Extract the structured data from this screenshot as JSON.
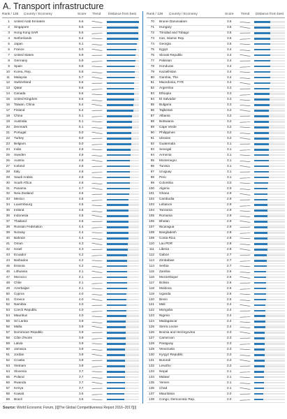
{
  "title": "A. Transport infrastructure",
  "headers": {
    "rank": "Rank / 138",
    "country": "Country / Economy",
    "score": "Score",
    "trend": "Trend",
    "distance": "Distance from best"
  },
  "source": {
    "label": "Source:",
    "text": "World Economic Forum, [i][The Global Competitiveness Report 2016–2017][i]"
  },
  "chart_data": {
    "type": "bar",
    "title": "A. Transport infrastructure",
    "xlabel": "",
    "ylabel": "",
    "xlim": [
      0,
      6.6
    ],
    "grid": false,
    "legend": "none",
    "columns": [
      "Rank / 138",
      "Country / Economy",
      "Score",
      "Trend",
      "Distance from best"
    ],
    "rows": [
      {
        "rank": "1",
        "country": "United Arab Emirates",
        "score": "6.6"
      },
      {
        "rank": "2",
        "country": "Singapore",
        "score": "6.5"
      },
      {
        "rank": "3",
        "country": "Hong Kong SAR",
        "score": "6.5"
      },
      {
        "rank": "4",
        "country": "Netherlands",
        "score": "6.4"
      },
      {
        "rank": "5",
        "country": "Japan",
        "score": "6.1"
      },
      {
        "rank": "6",
        "country": "France",
        "score": "6.0"
      },
      {
        "rank": "7",
        "country": "United States",
        "score": "5.9"
      },
      {
        "rank": "8",
        "country": "Germany",
        "score": "5.9"
      },
      {
        "rank": "9",
        "country": "Spain",
        "score": "5.8"
      },
      {
        "rank": "10",
        "country": "Korea, Rep.",
        "score": "5.8"
      },
      {
        "rank": "11",
        "country": "Malaysia",
        "score": "5.7"
      },
      {
        "rank": "12",
        "country": "Switzerland",
        "score": "5.6"
      },
      {
        "rank": "13",
        "country": "Qatar",
        "score": "5.6"
      },
      {
        "rank": "14",
        "country": "Canada",
        "score": "5.6"
      },
      {
        "rank": "15",
        "country": "United Kingdom",
        "score": "5.6"
      },
      {
        "rank": "16",
        "country": "Taiwan, China",
        "score": "5.4"
      },
      {
        "rank": "17",
        "country": "Finland",
        "score": "5.4"
      },
      {
        "rank": "18",
        "country": "China",
        "score": "5.1"
      },
      {
        "rank": "19",
        "country": "Australia",
        "score": "5.1"
      },
      {
        "rank": "20",
        "country": "Denmark",
        "score": "5.1"
      },
      {
        "rank": "21",
        "country": "Portugal",
        "score": "5.0"
      },
      {
        "rank": "22",
        "country": "Turkey",
        "score": "5.0"
      },
      {
        "rank": "23",
        "country": "Belgium",
        "score": "5.0"
      },
      {
        "rank": "24",
        "country": "India",
        "score": "4.9"
      },
      {
        "rank": "25",
        "country": "Sweden",
        "score": "4.9"
      },
      {
        "rank": "26",
        "country": "Austria",
        "score": "4.8"
      },
      {
        "rank": "27",
        "country": "Iceland",
        "score": "4.8"
      },
      {
        "rank": "28",
        "country": "Italy",
        "score": "4.8"
      },
      {
        "rank": "29",
        "country": "Saudi Arabia",
        "score": "4.8"
      },
      {
        "rank": "30",
        "country": "South Africa",
        "score": "4.8"
      },
      {
        "rank": "31",
        "country": "Panama",
        "score": "4.7"
      },
      {
        "rank": "32",
        "country": "New Zealand",
        "score": "4.6"
      },
      {
        "rank": "33",
        "country": "Mexico",
        "score": "4.5"
      },
      {
        "rank": "34",
        "country": "Luxembourg",
        "score": "4.5"
      },
      {
        "rank": "35",
        "country": "Ireland",
        "score": "4.5"
      },
      {
        "rank": "36",
        "country": "Indonesia",
        "score": "4.5"
      },
      {
        "rank": "37",
        "country": "Thailand",
        "score": "4.5"
      },
      {
        "rank": "38",
        "country": "Russian Federation",
        "score": "4.4"
      },
      {
        "rank": "39",
        "country": "Norway",
        "score": "4.4"
      },
      {
        "rank": "40",
        "country": "Bahrain",
        "score": "4.4"
      },
      {
        "rank": "41",
        "country": "Oman",
        "score": "4.3"
      },
      {
        "rank": "42",
        "country": "Israel",
        "score": "4.3"
      },
      {
        "rank": "43",
        "country": "Ecuador",
        "score": "4.2"
      },
      {
        "rank": "44",
        "country": "Barbados",
        "score": "4.2"
      },
      {
        "rank": "45",
        "country": "Estonia",
        "score": "4.2"
      },
      {
        "rank": "46",
        "country": "Lithuania",
        "score": "4.1"
      },
      {
        "rank": "47",
        "country": "Morocco",
        "score": "4.1"
      },
      {
        "rank": "48",
        "country": "Chile",
        "score": "4.1"
      },
      {
        "rank": "49",
        "country": "Azerbaijan",
        "score": "4.1"
      },
      {
        "rank": "50",
        "country": "Cyprus",
        "score": "4.0"
      },
      {
        "rank": "51",
        "country": "Greece",
        "score": "4.0"
      },
      {
        "rank": "52",
        "country": "Namibia",
        "score": "4.0"
      },
      {
        "rank": "53",
        "country": "Czech Republic",
        "score": "4.0"
      },
      {
        "rank": "54",
        "country": "Mauritius",
        "score": "4.0"
      },
      {
        "rank": "55",
        "country": "Sri Lanka",
        "score": "3.9"
      },
      {
        "rank": "56",
        "country": "Malta",
        "score": "3.9"
      },
      {
        "rank": "57",
        "country": "Dominican Republic",
        "score": "3.9"
      },
      {
        "rank": "58",
        "country": "Côte d'Ivoire",
        "score": "3.9"
      },
      {
        "rank": "59",
        "country": "Latvia",
        "score": "3.9"
      },
      {
        "rank": "60",
        "country": "Jamaica",
        "score": "3.8"
      },
      {
        "rank": "61",
        "country": "Jordan",
        "score": "3.8"
      },
      {
        "rank": "62",
        "country": "Croatia",
        "score": "3.8"
      },
      {
        "rank": "63",
        "country": "Vietnam",
        "score": "3.8"
      },
      {
        "rank": "64",
        "country": "Slovenia",
        "score": "3.7"
      },
      {
        "rank": "65",
        "country": "Poland",
        "score": "3.7"
      },
      {
        "rank": "66",
        "country": "Rwanda",
        "score": "3.7"
      },
      {
        "rank": "67",
        "country": "Kenya",
        "score": "3.7"
      },
      {
        "rank": "68",
        "country": "Kuwait",
        "score": "3.6"
      },
      {
        "rank": "69",
        "country": "Brazil",
        "score": "3.6"
      },
      {
        "rank": "70",
        "country": "Brunei Darussalam",
        "score": "3.5"
      },
      {
        "rank": "71",
        "country": "Hungary",
        "score": "3.5"
      },
      {
        "rank": "72",
        "country": "Trinidad and Tobago",
        "score": "3.5"
      },
      {
        "rank": "73",
        "country": "Iran, Islamic Rep.",
        "score": "3.5"
      },
      {
        "rank": "74",
        "country": "Georgia",
        "score": "3.5"
      },
      {
        "rank": "75",
        "country": "Egypt",
        "score": "3.4"
      },
      {
        "rank": "76",
        "country": "Slovak Republic",
        "score": "3.4"
      },
      {
        "rank": "77",
        "country": "Pakistan",
        "score": "3.4"
      },
      {
        "rank": "78",
        "country": "Honduras",
        "score": "3.4"
      },
      {
        "rank": "79",
        "country": "Kazakhstan",
        "score": "3.4"
      },
      {
        "rank": "80",
        "country": "Gambia, The",
        "score": "3.4"
      },
      {
        "rank": "81",
        "country": "Macedonia, FYR",
        "score": "3.4"
      },
      {
        "rank": "82",
        "country": "Argentina",
        "score": "3.3"
      },
      {
        "rank": "83",
        "country": "Ethiopia",
        "score": "3.3"
      },
      {
        "rank": "84",
        "country": "El Salvador",
        "score": "3.3"
      },
      {
        "rank": "85",
        "country": "Bulgaria",
        "score": "3.3"
      },
      {
        "rank": "86",
        "country": "Tajikistan",
        "score": "3.2"
      },
      {
        "rank": "87",
        "country": "Albania",
        "score": "3.2"
      },
      {
        "rank": "88",
        "country": "Botswana",
        "score": "3.2"
      },
      {
        "rank": "89",
        "country": "Cape Verde",
        "score": "3.2"
      },
      {
        "rank": "90",
        "country": "Philippines",
        "score": "3.2"
      },
      {
        "rank": "91",
        "country": "Ukraine",
        "score": "3.2"
      },
      {
        "rank": "92",
        "country": "Guatemala",
        "score": "3.1"
      },
      {
        "rank": "93",
        "country": "Senegal",
        "score": "3.1"
      },
      {
        "rank": "94",
        "country": "Armenia",
        "score": "3.1"
      },
      {
        "rank": "95",
        "country": "Montenegro",
        "score": "3.1"
      },
      {
        "rank": "96",
        "country": "Tunisia",
        "score": "3.1"
      },
      {
        "rank": "97",
        "country": "Uruguay",
        "score": "3.1"
      },
      {
        "rank": "98",
        "country": "Peru",
        "score": "3.1"
      },
      {
        "rank": "99",
        "country": "Colombia",
        "score": "3.0"
      },
      {
        "rank": "100",
        "country": "Algeria",
        "score": "2.9"
      },
      {
        "rank": "101",
        "country": "Ghana",
        "score": "2.9"
      },
      {
        "rank": "102",
        "country": "Cambodia",
        "score": "2.9"
      },
      {
        "rank": "103",
        "country": "Lebanon",
        "score": "2.9"
      },
      {
        "rank": "104",
        "country": "Tanzania",
        "score": "2.9"
      },
      {
        "rank": "105",
        "country": "Romania",
        "score": "2.9"
      },
      {
        "rank": "106",
        "country": "Bhutan",
        "score": "2.9"
      },
      {
        "rank": "107",
        "country": "Nicaragua",
        "score": "2.9"
      },
      {
        "rank": "108",
        "country": "Bangladesh",
        "score": "2.8"
      },
      {
        "rank": "109",
        "country": "Costa Rica",
        "score": "2.8"
      },
      {
        "rank": "110",
        "country": "Lao PDR",
        "score": "2.8"
      },
      {
        "rank": "111",
        "country": "Liberia",
        "score": "2.8"
      },
      {
        "rank": "112",
        "country": "Gabon",
        "score": "2.7"
      },
      {
        "rank": "113",
        "country": "Zimbabwe",
        "score": "2.7"
      },
      {
        "rank": "114",
        "country": "Serbia",
        "score": "2.7"
      },
      {
        "rank": "115",
        "country": "Zambia",
        "score": "2.6"
      },
      {
        "rank": "116",
        "country": "Mozambique",
        "score": "2.6"
      },
      {
        "rank": "117",
        "country": "Bolivia",
        "score": "2.6"
      },
      {
        "rank": "118",
        "country": "Moldova",
        "score": "2.6"
      },
      {
        "rank": "119",
        "country": "Uganda",
        "score": "2.5"
      },
      {
        "rank": "120",
        "country": "Benin",
        "score": "2.5"
      },
      {
        "rank": "121",
        "country": "Mali",
        "score": "2.4"
      },
      {
        "rank": "122",
        "country": "Mongolia",
        "score": "2.4"
      },
      {
        "rank": "123",
        "country": "Nigeria",
        "score": "2.4"
      },
      {
        "rank": "124",
        "country": "Madagascar",
        "score": "2.4"
      },
      {
        "rank": "125",
        "country": "Sierra Leone",
        "score": "2.4"
      },
      {
        "rank": "126",
        "country": "Bosnia and Herzegovina",
        "score": "2.3"
      },
      {
        "rank": "127",
        "country": "Cameroon",
        "score": "2.3"
      },
      {
        "rank": "128",
        "country": "Paraguay",
        "score": "2.3"
      },
      {
        "rank": "129",
        "country": "Venezuela",
        "score": "2.3"
      },
      {
        "rank": "130",
        "country": "Kyrgyz Republic",
        "score": "2.2"
      },
      {
        "rank": "131",
        "country": "Burundi",
        "score": "2.2"
      },
      {
        "rank": "132",
        "country": "Lesotho",
        "score": "2.2"
      },
      {
        "rank": "133",
        "country": "Nepal",
        "score": "2.1"
      },
      {
        "rank": "134",
        "country": "Malawi",
        "score": "2.1"
      },
      {
        "rank": "135",
        "country": "Yemen",
        "score": "2.1"
      },
      {
        "rank": "136",
        "country": "Chad",
        "score": "2.1"
      },
      {
        "rank": "137",
        "country": "Mauritania",
        "score": "2.0"
      },
      {
        "rank": "138",
        "country": "Congo, Democratic Rep.",
        "score": "2.0"
      }
    ]
  },
  "colors": {
    "bar": "#2a7ab8",
    "track": "#e6e6e6",
    "trend": "#555555"
  },
  "trend_icon": "trend-sparkline-icon"
}
